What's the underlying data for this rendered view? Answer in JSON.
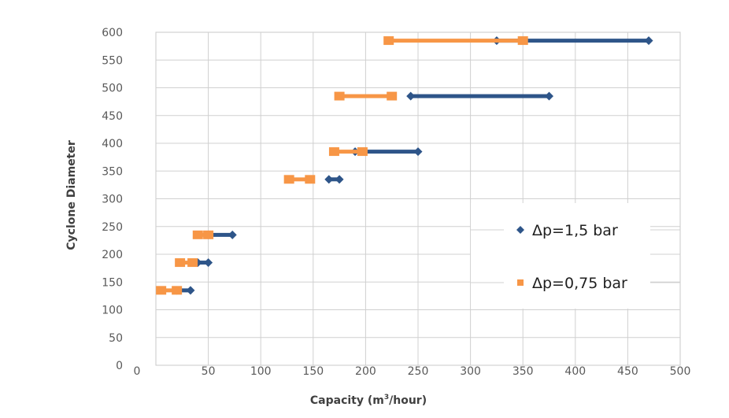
{
  "chart_data": {
    "type": "line",
    "xlabel": "Capacity (m",
    "xlabel_sup": "3",
    "xlabel_tail": "/hour)",
    "ylabel": "Cyclone Diameter",
    "x_origin_label": "0",
    "xlim": [
      0,
      500
    ],
    "ylim": [
      0,
      600
    ],
    "x_ticks": [
      "50",
      "100",
      "150",
      "200",
      "250",
      "300",
      "350",
      "400",
      "450",
      "500"
    ],
    "y_ticks": [
      "0",
      "50",
      "100",
      "150",
      "200",
      "250",
      "300",
      "350",
      "400",
      "450",
      "500",
      "550",
      "600"
    ],
    "grid": true,
    "legend_position": "right",
    "series": [
      {
        "name": "Δp=1,5 bar",
        "color": "#2e5589",
        "marker": "diamond",
        "segments": [
          {
            "y": 135,
            "x": [
              20,
              33
            ]
          },
          {
            "y": 185,
            "x": [
              40,
              50
            ]
          },
          {
            "y": 235,
            "x": [
              50,
              73
            ]
          },
          {
            "y": 335,
            "x": [
              165,
              175
            ]
          },
          {
            "y": 385,
            "x": [
              190,
              250
            ]
          },
          {
            "y": 485,
            "x": [
              243,
              375
            ]
          },
          {
            "y": 585,
            "x": [
              325,
              470
            ]
          }
        ]
      },
      {
        "name": "Δp=0,75 bar",
        "color": "#f79646",
        "marker": "square",
        "segments": [
          {
            "y": 135,
            "x": [
              5,
              20
            ]
          },
          {
            "y": 185,
            "x": [
              23,
              35
            ]
          },
          {
            "y": 235,
            "x": [
              40,
              50
            ]
          },
          {
            "y": 335,
            "x": [
              127,
              147
            ]
          },
          {
            "y": 385,
            "x": [
              170,
              197
            ]
          },
          {
            "y": 485,
            "x": [
              175,
              225
            ]
          },
          {
            "y": 585,
            "x": [
              222,
              350
            ]
          }
        ]
      }
    ]
  }
}
